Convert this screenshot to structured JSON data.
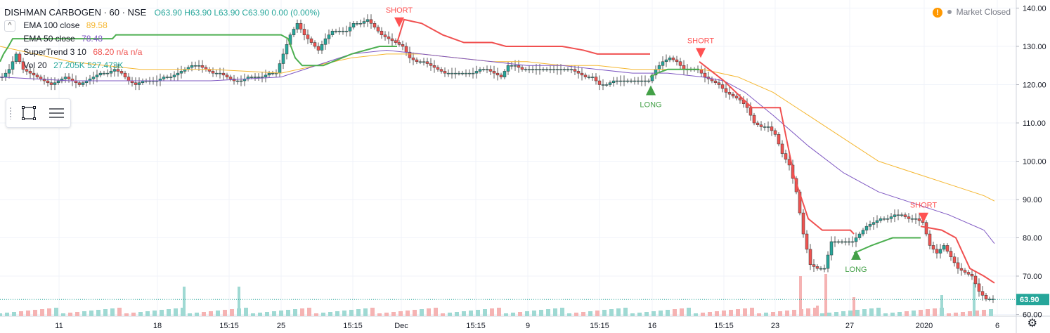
{
  "header": {
    "symbol": "DISHMAN CARBOGEN · 60 · NSE",
    "ohlc": "O63.90  H63.90  L63.90  C63.90  0.00 (0.00%)",
    "market_status": "Market Closed"
  },
  "indicators": [
    {
      "label": "EMA 100 close",
      "value": "89.58",
      "color": "#f5b731"
    },
    {
      "label": "EMA 50 close",
      "value": "78.48",
      "color": "#7e57c2"
    },
    {
      "label": "SuperTrend 3 10",
      "value": "68.20  n/a  n/a",
      "color": "#ef5350"
    },
    {
      "label": "Vol 20",
      "value": "27.205K  527.473K",
      "color": "#26a69a"
    }
  ],
  "colors": {
    "up": "#26a69a",
    "down": "#ef5350",
    "st_up": "#4caf50",
    "st_down": "#f05050",
    "ema100": "#f5b731",
    "ema50": "#7e57c2"
  },
  "chart_data": {
    "type": "candlestick",
    "y_ticks": [
      "140.00",
      "130.00",
      "120.00",
      "110.00",
      "100.00",
      "90.00",
      "80.00",
      "70.00",
      "60.00"
    ],
    "ylim": [
      59,
      142
    ],
    "x_tick_labels": [
      "11",
      "18",
      "15:15",
      "25",
      "15:15",
      "Dec",
      "15:15",
      "9",
      "15:15",
      "16",
      "15:15",
      "23",
      "27",
      "2020",
      "6"
    ],
    "last_price_label": "63.90",
    "path_points": [
      [
        0,
        122
      ],
      [
        10,
        124
      ],
      [
        20,
        128
      ],
      [
        30,
        124
      ],
      [
        40,
        123
      ],
      [
        50,
        122
      ],
      [
        60,
        121
      ],
      [
        70,
        120
      ],
      [
        80,
        121
      ],
      [
        90,
        122
      ],
      [
        100,
        121
      ],
      [
        110,
        120
      ],
      [
        120,
        121
      ],
      [
        130,
        122
      ],
      [
        140,
        123
      ],
      [
        150,
        123
      ],
      [
        160,
        124
      ],
      [
        170,
        123
      ],
      [
        180,
        121
      ],
      [
        190,
        120
      ],
      [
        200,
        121
      ],
      [
        210,
        121
      ],
      [
        220,
        121
      ],
      [
        230,
        122
      ],
      [
        240,
        122
      ],
      [
        250,
        123
      ],
      [
        260,
        124
      ],
      [
        270,
        125
      ],
      [
        280,
        125
      ],
      [
        290,
        124
      ],
      [
        300,
        123
      ],
      [
        310,
        123
      ],
      [
        320,
        122
      ],
      [
        330,
        121
      ],
      [
        340,
        121
      ],
      [
        350,
        122
      ],
      [
        360,
        122
      ],
      [
        370,
        122
      ],
      [
        380,
        123
      ],
      [
        390,
        123
      ],
      [
        400,
        128
      ],
      [
        410,
        133
      ],
      [
        420,
        136
      ],
      [
        430,
        133
      ],
      [
        440,
        131
      ],
      [
        450,
        129
      ],
      [
        460,
        132
      ],
      [
        470,
        134
      ],
      [
        480,
        134
      ],
      [
        490,
        134
      ],
      [
        500,
        136
      ],
      [
        510,
        136
      ],
      [
        520,
        137
      ],
      [
        530,
        135
      ],
      [
        540,
        133
      ],
      [
        550,
        132
      ],
      [
        560,
        131
      ],
      [
        570,
        130
      ],
      [
        580,
        127
      ],
      [
        590,
        126
      ],
      [
        600,
        126
      ],
      [
        610,
        125
      ],
      [
        620,
        124
      ],
      [
        630,
        123
      ],
      [
        640,
        123
      ],
      [
        650,
        123
      ],
      [
        660,
        123
      ],
      [
        670,
        123
      ],
      [
        680,
        124
      ],
      [
        690,
        124
      ],
      [
        700,
        123
      ],
      [
        710,
        122
      ],
      [
        720,
        125
      ],
      [
        730,
        125
      ],
      [
        740,
        124
      ],
      [
        750,
        124
      ],
      [
        760,
        124
      ],
      [
        770,
        124
      ],
      [
        780,
        124
      ],
      [
        790,
        124
      ],
      [
        800,
        124
      ],
      [
        810,
        124
      ],
      [
        820,
        123
      ],
      [
        830,
        122
      ],
      [
        840,
        122
      ],
      [
        850,
        120
      ],
      [
        860,
        120
      ],
      [
        870,
        121
      ],
      [
        880,
        121
      ],
      [
        890,
        121
      ],
      [
        900,
        121
      ],
      [
        910,
        121
      ],
      [
        920,
        121
      ],
      [
        930,
        124
      ],
      [
        940,
        126
      ],
      [
        950,
        127
      ],
      [
        960,
        126
      ],
      [
        970,
        124
      ],
      [
        980,
        124
      ],
      [
        990,
        124
      ],
      [
        1000,
        122
      ],
      [
        1010,
        121
      ],
      [
        1020,
        120
      ],
      [
        1030,
        118
      ],
      [
        1040,
        117
      ],
      [
        1050,
        116
      ],
      [
        1060,
        114
      ],
      [
        1070,
        110
      ],
      [
        1080,
        109
      ],
      [
        1090,
        109
      ],
      [
        1100,
        107
      ],
      [
        1110,
        102
      ],
      [
        1120,
        99
      ],
      [
        1130,
        92
      ],
      [
        1140,
        81
      ],
      [
        1150,
        73
      ],
      [
        1160,
        72
      ],
      [
        1170,
        72
      ],
      [
        1180,
        79
      ],
      [
        1190,
        79
      ],
      [
        1200,
        79
      ],
      [
        1210,
        79
      ],
      [
        1220,
        81
      ],
      [
        1230,
        83
      ],
      [
        1240,
        84
      ],
      [
        1250,
        85
      ],
      [
        1260,
        85
      ],
      [
        1270,
        86
      ],
      [
        1280,
        86
      ],
      [
        1290,
        85
      ],
      [
        1300,
        85
      ],
      [
        1310,
        84
      ],
      [
        1320,
        78
      ],
      [
        1330,
        76
      ],
      [
        1340,
        78
      ],
      [
        1350,
        75
      ],
      [
        1360,
        72
      ],
      [
        1370,
        71
      ],
      [
        1380,
        70
      ],
      [
        1390,
        66
      ],
      [
        1400,
        64
      ],
      [
        1410,
        64
      ]
    ],
    "ema50": [
      [
        0,
        122
      ],
      [
        100,
        121
      ],
      [
        200,
        121
      ],
      [
        300,
        121
      ],
      [
        400,
        122
      ],
      [
        450,
        125
      ],
      [
        500,
        128
      ],
      [
        550,
        129
      ],
      [
        600,
        128
      ],
      [
        650,
        127
      ],
      [
        700,
        126
      ],
      [
        750,
        125
      ],
      [
        800,
        125
      ],
      [
        850,
        124
      ],
      [
        900,
        123
      ],
      [
        950,
        123
      ],
      [
        1000,
        122
      ],
      [
        1030,
        121
      ],
      [
        1060,
        118
      ],
      [
        1100,
        112
      ],
      [
        1150,
        104
      ],
      [
        1200,
        97
      ],
      [
        1250,
        92
      ],
      [
        1300,
        89
      ],
      [
        1350,
        86
      ],
      [
        1400,
        82
      ],
      [
        1415,
        78.5
      ]
    ],
    "ema100": [
      [
        0,
        130
      ],
      [
        100,
        126
      ],
      [
        200,
        124
      ],
      [
        300,
        124
      ],
      [
        400,
        123
      ],
      [
        450,
        125
      ],
      [
        500,
        127
      ],
      [
        550,
        128
      ],
      [
        600,
        128
      ],
      [
        650,
        127
      ],
      [
        700,
        126
      ],
      [
        750,
        126
      ],
      [
        800,
        125
      ],
      [
        850,
        125
      ],
      [
        900,
        124
      ],
      [
        950,
        124
      ],
      [
        1000,
        124
      ],
      [
        1050,
        122
      ],
      [
        1100,
        118
      ],
      [
        1150,
        112
      ],
      [
        1200,
        106
      ],
      [
        1250,
        100
      ],
      [
        1300,
        97
      ],
      [
        1350,
        94
      ],
      [
        1400,
        91
      ],
      [
        1415,
        89.6
      ]
    ],
    "supertrend_up": [
      [
        0,
        126
      ],
      [
        5,
        128
      ],
      [
        12,
        130
      ],
      [
        18,
        132
      ],
      [
        160,
        132
      ],
      [
        165,
        133
      ],
      [
        400,
        133
      ],
      [
        410,
        132
      ],
      [
        420,
        127
      ],
      [
        430,
        125
      ],
      [
        460,
        125
      ],
      [
        500,
        128
      ],
      [
        540,
        130
      ],
      [
        565,
        130
      ]
    ],
    "supertrend_down": [
      [
        565,
        131
      ],
      [
        575,
        137
      ],
      [
        600,
        136
      ],
      [
        630,
        133
      ],
      [
        660,
        131
      ],
      [
        700,
        131
      ],
      [
        720,
        130
      ],
      [
        800,
        130
      ],
      [
        830,
        129
      ],
      [
        850,
        128
      ],
      [
        925,
        128
      ]
    ],
    "supertrend_up_2": [
      [
        925,
        122
      ],
      [
        935,
        123
      ],
      [
        950,
        124
      ],
      [
        995,
        124
      ]
    ],
    "supertrend_down_2": [
      [
        995,
        126
      ],
      [
        1030,
        121
      ],
      [
        1070,
        114
      ],
      [
        1110,
        114
      ],
      [
        1130,
        96
      ],
      [
        1150,
        85
      ],
      [
        1170,
        82
      ],
      [
        1210,
        82
      ],
      [
        1215,
        81
      ]
    ],
    "supertrend_up_3": [
      [
        1215,
        76
      ],
      [
        1240,
        78
      ],
      [
        1270,
        80
      ],
      [
        1310,
        80
      ]
    ],
    "supertrend_down_3": [
      [
        1310,
        83
      ],
      [
        1340,
        82
      ],
      [
        1360,
        80
      ],
      [
        1380,
        72
      ],
      [
        1400,
        70
      ],
      [
        1415,
        68.2
      ]
    ],
    "signals": [
      {
        "label": "SHORT",
        "x": 568,
        "y": 135,
        "dir": "down"
      },
      {
        "label": "LONG",
        "x": 926,
        "y": 120,
        "dir": "up"
      },
      {
        "label": "SHORT",
        "x": 997,
        "y": 127,
        "dir": "down"
      },
      {
        "label": "LONG",
        "x": 1218,
        "y": 77,
        "dir": "up"
      },
      {
        "label": "SHORT",
        "x": 1314,
        "y": 84,
        "dir": "down"
      }
    ],
    "volume_spikes": [
      [
        262,
        0.7
      ],
      [
        340,
        0.7
      ],
      [
        1139,
        0.95
      ],
      [
        1163,
        0.25
      ],
      [
        1175,
        1.0
      ],
      [
        1215,
        0.45
      ],
      [
        1340,
        0.5
      ],
      [
        1386,
        0.8
      ]
    ]
  }
}
